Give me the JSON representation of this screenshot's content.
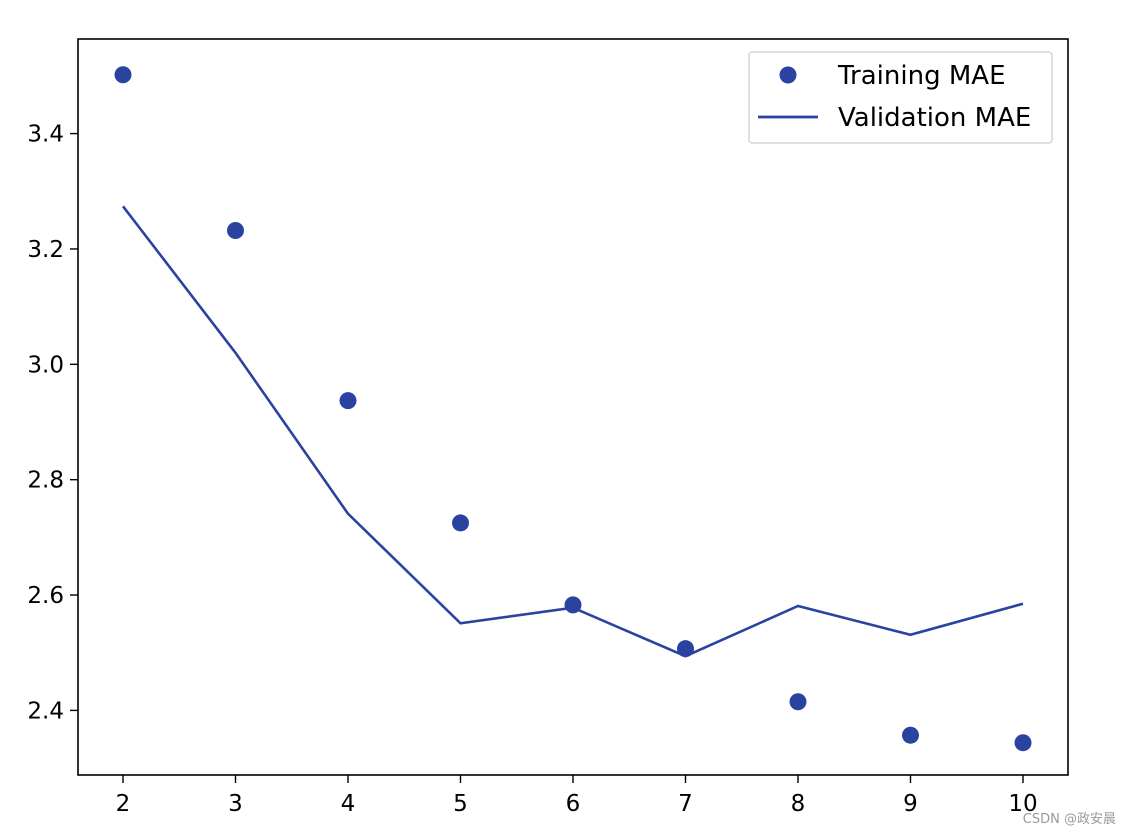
{
  "chart_data": {
    "type": "line",
    "x": [
      2,
      3,
      4,
      5,
      6,
      7,
      8,
      9,
      10
    ],
    "series": [
      {
        "name": "Training MAE",
        "style": "scatter",
        "values": [
          3.502,
          3.232,
          2.937,
          2.725,
          2.583,
          2.507,
          2.415,
          2.357,
          2.344
        ]
      },
      {
        "name": "Validation MAE",
        "style": "line",
        "values": [
          3.274,
          3.02,
          2.741,
          2.551,
          2.578,
          2.494,
          2.581,
          2.531,
          2.585
        ]
      }
    ],
    "xlim": [
      1.6,
      10.4
    ],
    "ylim": [
      2.288,
      3.564
    ],
    "x_ticks": [
      2,
      3,
      4,
      5,
      6,
      7,
      8,
      9,
      10
    ],
    "y_ticks": [
      2.4,
      2.6,
      2.8,
      3.0,
      3.2,
      3.4
    ],
    "y_tick_labels": [
      "2.4",
      "2.6",
      "2.8",
      "3.0",
      "3.2",
      "3.4"
    ],
    "title": "",
    "xlabel": "",
    "ylabel": "",
    "grid": false,
    "legend_position": "top-right",
    "color": "#2b43a0"
  },
  "watermark": "CSDN @政安晨"
}
